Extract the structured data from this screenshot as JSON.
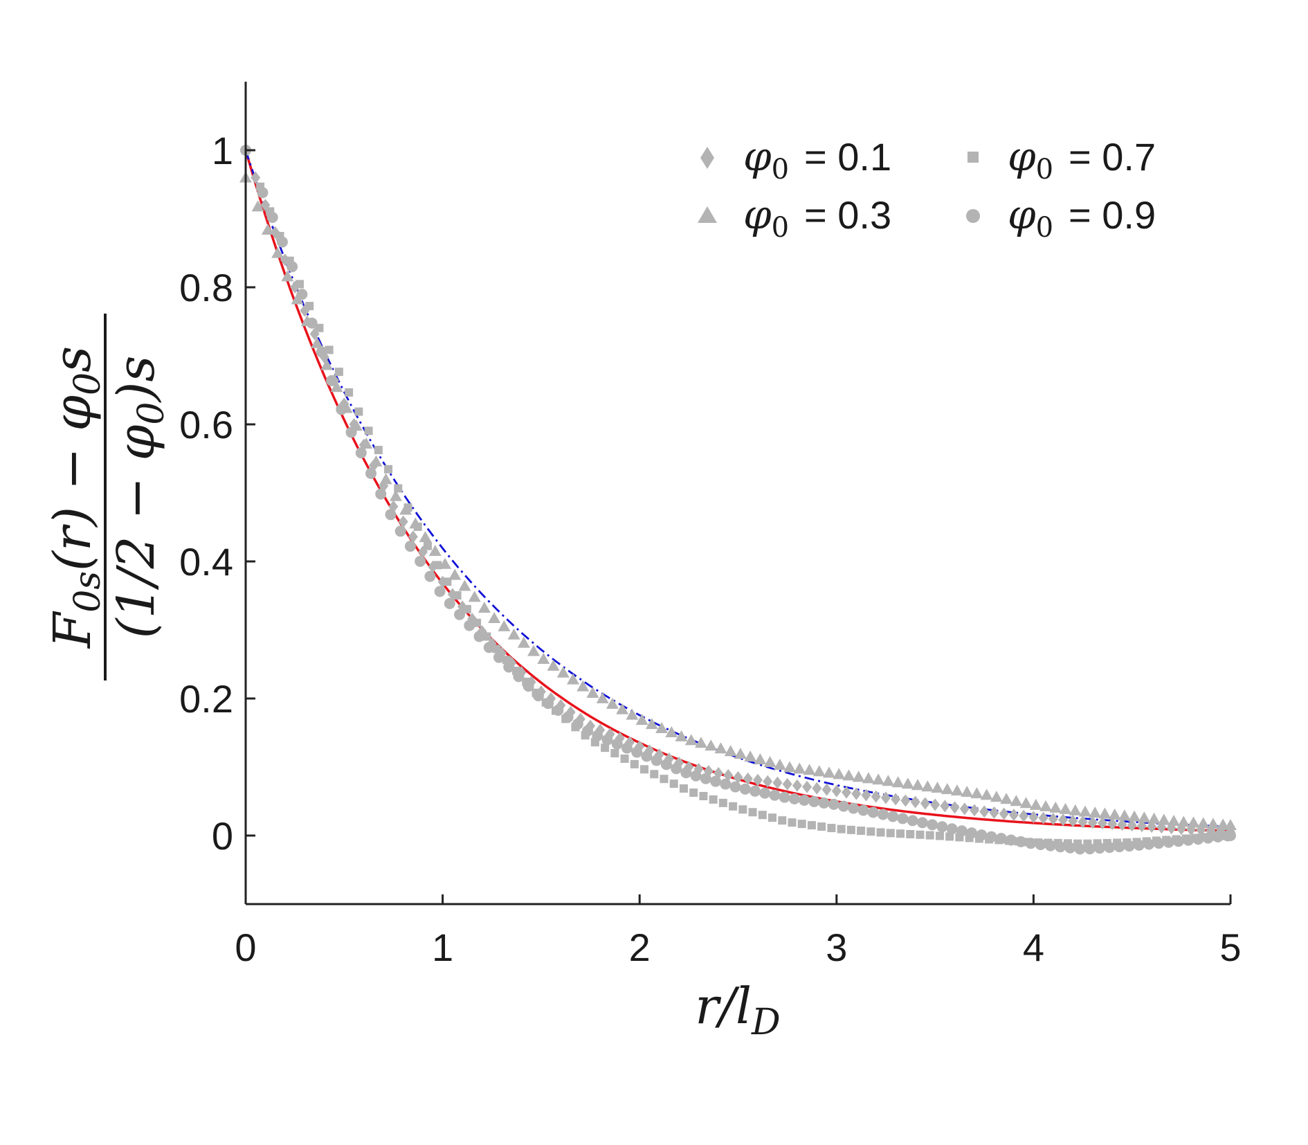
{
  "chart_data": {
    "type": "scatter",
    "title": "",
    "xlabel": "r/l_D",
    "ylabel": "(F_0s(r) − φ_0 s) / ((1/2 − φ_0) s)",
    "xlim": [
      0,
      5
    ],
    "ylim": [
      -0.1,
      1.1
    ],
    "x_ticks": [
      0,
      1,
      2,
      3,
      4,
      5
    ],
    "x_tick_labels": [
      "0",
      "1",
      "2",
      "3",
      "4",
      "5"
    ],
    "y_ticks": [
      0,
      0.2,
      0.4,
      0.6,
      0.8,
      1
    ],
    "y_tick_labels": [
      "0",
      "0.2",
      "0.4",
      "0.6",
      "0.8",
      "1"
    ],
    "grid": false,
    "legend_position": "top-right",
    "colors": {
      "markers": "#b3b3b3",
      "red_curve": "#e8121c",
      "blue_curve": "#1010d8",
      "axis": "#222222",
      "text": "#1a1a1a"
    },
    "series": [
      {
        "name": "φ0 = 0.1",
        "symbol": "φ",
        "subscript": "0",
        "value_text": "= 0.1",
        "marker": "diamond",
        "x": [
          0,
          0.25,
          0.5,
          0.75,
          1,
          1.25,
          1.5,
          1.75,
          2,
          2.25,
          2.5,
          2.75,
          3,
          3.25,
          3.5,
          3.75,
          4,
          4.25,
          4.5,
          4.75,
          5
        ],
        "y": [
          1.0,
          0.8,
          0.63,
          0.48,
          0.37,
          0.28,
          0.21,
          0.16,
          0.13,
          0.1,
          0.085,
          0.075,
          0.065,
          0.055,
          0.045,
          0.035,
          0.027,
          0.02,
          0.015,
          0.01,
          0.005
        ]
      },
      {
        "name": "φ0 = 0.3",
        "symbol": "φ",
        "subscript": "0",
        "value_text": "= 0.3",
        "marker": "triangle",
        "x": [
          0,
          0.25,
          0.5,
          0.75,
          1,
          1.25,
          1.5,
          1.75,
          2,
          2.25,
          2.5,
          2.75,
          3,
          3.25,
          3.5,
          3.75,
          4,
          4.25,
          4.5,
          4.75,
          5
        ],
        "y": [
          0.96,
          0.79,
          0.63,
          0.5,
          0.4,
          0.32,
          0.26,
          0.21,
          0.17,
          0.14,
          0.12,
          0.1,
          0.09,
          0.08,
          0.07,
          0.06,
          0.045,
          0.035,
          0.028,
          0.02,
          0.015
        ]
      },
      {
        "name": "φ0 = 0.7",
        "symbol": "φ",
        "subscript": "0",
        "value_text": "= 0.7",
        "marker": "square",
        "x": [
          0,
          0.25,
          0.5,
          0.75,
          1,
          1.25,
          1.5,
          1.75,
          2,
          2.25,
          2.5,
          2.75,
          3,
          3.25,
          3.5,
          3.75,
          4,
          4.25,
          4.5,
          4.75,
          5
        ],
        "y": [
          1.0,
          0.82,
          0.66,
          0.52,
          0.38,
          0.28,
          0.2,
          0.14,
          0.1,
          0.065,
          0.04,
          0.02,
          0.01,
          0.004,
          0.0,
          -0.005,
          -0.01,
          -0.012,
          -0.01,
          -0.005,
          0.0
        ]
      },
      {
        "name": "φ0 = 0.9",
        "symbol": "φ",
        "subscript": "0",
        "value_text": "= 0.9",
        "marker": "circle",
        "x": [
          0,
          0.25,
          0.5,
          0.75,
          1,
          1.25,
          1.5,
          1.75,
          2,
          2.25,
          2.5,
          2.75,
          3,
          3.25,
          3.5,
          3.75,
          4,
          4.25,
          4.5,
          4.75,
          5
        ],
        "y": [
          1.0,
          0.82,
          0.61,
          0.46,
          0.35,
          0.27,
          0.2,
          0.15,
          0.12,
          0.09,
          0.07,
          0.055,
          0.045,
          0.03,
          0.015,
          0.0,
          -0.012,
          -0.02,
          -0.015,
          -0.008,
          0.0
        ]
      }
    ],
    "curves": [
      {
        "name": "red solid curve",
        "style": "solid",
        "color": "#e8121c",
        "form": "exp(-x)"
      },
      {
        "name": "blue dash-dot curve",
        "style": "dash-dot",
        "color": "#1010d8",
        "form": "exp(-x/1.15)"
      }
    ]
  }
}
